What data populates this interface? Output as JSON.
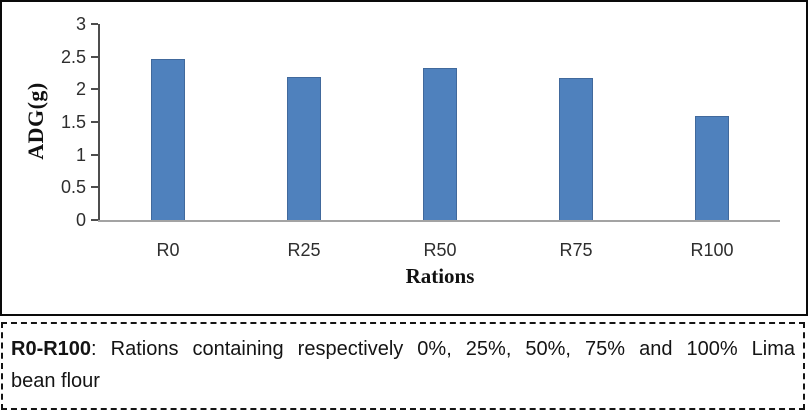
{
  "chart_data": {
    "type": "bar",
    "title": "",
    "categories": [
      "R0",
      "R25",
      "R50",
      "R75",
      "R100"
    ],
    "values": [
      2.46,
      2.19,
      2.32,
      2.17,
      1.59
    ],
    "xlabel": "Rations",
    "ylabel": "ADG(g)",
    "ylim": [
      0,
      3
    ],
    "ytick_step": 0.5,
    "ytick_labels": [
      "0",
      "0.5",
      "1",
      "1.5",
      "2",
      "2.5",
      "3"
    ],
    "grid": false,
    "legend": false,
    "bar_color": "#4f81bd",
    "bar_border_color": "#41699c",
    "yaxis_line_color": "#4d4d4d",
    "xaxis_line_color": "#a3a3a3"
  },
  "caption": {
    "bold_term": "R0-R100",
    "line1_rest": ": Rations containing respectively 0%, 25%, 50%, 75% and 100% Lima",
    "line2": "bean flour",
    "full_text": "R0-R100: Rations containing respectively 0%, 25%, 50%, 75% and 100% Lima bean flour"
  }
}
